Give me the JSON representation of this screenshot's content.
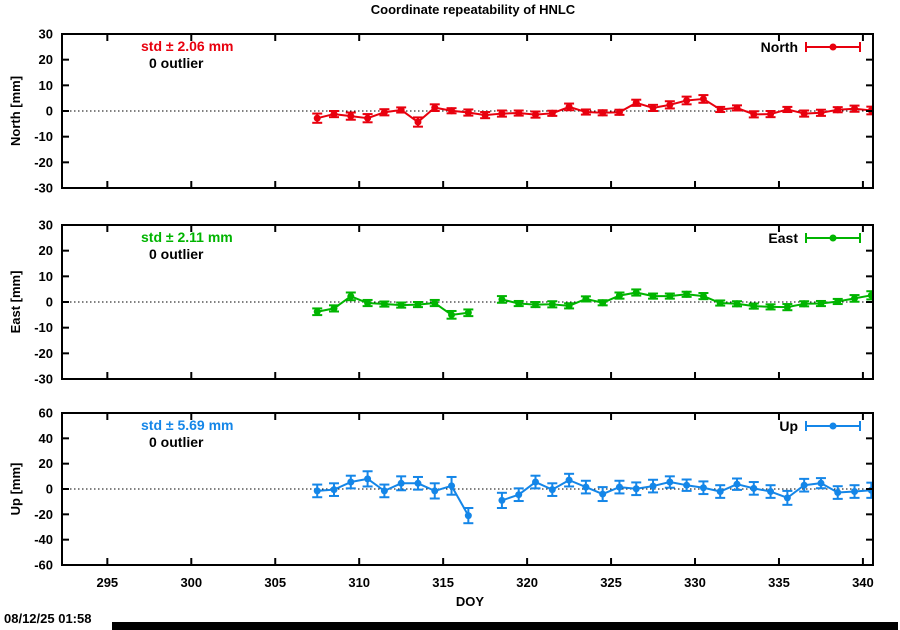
{
  "footer": {
    "timestamp": "08/12/25 01:58"
  },
  "chart_data": {
    "type": "scatter",
    "subtype": "errorbar-timeseries",
    "title": "Coordinate repeatability of HNLC",
    "xlabel": "DOY",
    "xlim": [
      292.3,
      340.6
    ],
    "xticks": [
      295,
      300,
      305,
      310,
      315,
      320,
      325,
      330,
      335,
      340
    ],
    "grid": "zero-line-only",
    "legend_position": "top-right-inside",
    "panels": [
      {
        "name": "North",
        "ylabel": "North [mm]",
        "legend": "North",
        "std_label": "std ± 2.06 mm",
        "outlier_label": "0 outlier",
        "color": "#e8000e",
        "ylim": [
          -30,
          30
        ],
        "yticks": [
          30,
          20,
          10,
          0,
          -10,
          -20,
          -30
        ],
        "points": [
          [
            307.5,
            -2.8,
            1.8
          ],
          [
            308.5,
            -1.2,
            1.2
          ],
          [
            309.5,
            -2.0,
            1.4
          ],
          [
            310.5,
            -2.8,
            1.6
          ],
          [
            311.5,
            -0.5,
            1.2
          ],
          [
            312.5,
            0.4,
            1.0
          ],
          [
            313.5,
            -4.3,
            1.8
          ],
          [
            314.5,
            1.3,
            1.3
          ],
          [
            315.5,
            0.1,
            1.0
          ],
          [
            316.5,
            -0.6,
            1.2
          ],
          [
            317.5,
            -1.6,
            1.2
          ],
          [
            318.5,
            -1.0,
            1.2
          ],
          [
            319.5,
            -0.8,
            1.0
          ],
          [
            320.5,
            -1.4,
            1.2
          ],
          [
            321.5,
            -0.9,
            1.0
          ],
          [
            322.5,
            1.6,
            1.3
          ],
          [
            323.5,
            -0.4,
            1.0
          ],
          [
            324.5,
            -0.7,
            1.0
          ],
          [
            325.5,
            -0.5,
            1.0
          ],
          [
            326.5,
            3.2,
            1.2
          ],
          [
            327.5,
            1.2,
            1.2
          ],
          [
            328.5,
            2.4,
            1.4
          ],
          [
            329.5,
            4.1,
            1.5
          ],
          [
            330.5,
            4.7,
            1.5
          ],
          [
            331.5,
            0.6,
            1.0
          ],
          [
            332.5,
            1.2,
            1.0
          ],
          [
            333.5,
            -1.3,
            1.2
          ],
          [
            334.5,
            -1.2,
            1.2
          ],
          [
            335.5,
            0.6,
            1.0
          ],
          [
            336.5,
            -1.0,
            1.2
          ],
          [
            337.5,
            -0.7,
            1.2
          ],
          [
            338.5,
            0.5,
            1.0
          ],
          [
            339.5,
            0.9,
            1.2
          ],
          [
            340.5,
            0.2,
            1.5
          ]
        ]
      },
      {
        "name": "East",
        "ylabel": "East [mm]",
        "legend": "East",
        "std_label": "std ± 2.11 mm",
        "outlier_label": "0 outlier",
        "color": "#00b400",
        "ylim": [
          -30,
          30
        ],
        "yticks": [
          30,
          20,
          10,
          0,
          -10,
          -20,
          -30
        ],
        "points": [
          [
            307.5,
            -3.8,
            1.3
          ],
          [
            308.5,
            -2.5,
            1.2
          ],
          [
            309.5,
            2.2,
            1.5
          ],
          [
            310.5,
            -0.4,
            1.2
          ],
          [
            311.5,
            -0.8,
            1.0
          ],
          [
            312.5,
            -1.2,
            1.0
          ],
          [
            313.5,
            -1.0,
            1.0
          ],
          [
            314.5,
            -0.4,
            1.2
          ],
          [
            315.5,
            -5.0,
            1.5
          ],
          [
            316.5,
            -4.2,
            1.3
          ],
          [
            318.5,
            1.0,
            1.3
          ],
          [
            319.5,
            -0.6,
            1.0
          ],
          [
            320.5,
            -1.0,
            1.0
          ],
          [
            321.5,
            -0.9,
            1.2
          ],
          [
            322.5,
            -1.5,
            1.0
          ],
          [
            323.5,
            1.2,
            1.0
          ],
          [
            324.5,
            -0.3,
            1.0
          ],
          [
            325.5,
            2.5,
            1.2
          ],
          [
            326.5,
            3.7,
            1.2
          ],
          [
            327.5,
            2.3,
            1.0
          ],
          [
            328.5,
            2.3,
            1.0
          ],
          [
            329.5,
            3.0,
            1.0
          ],
          [
            330.5,
            2.3,
            1.2
          ],
          [
            331.5,
            -0.4,
            1.0
          ],
          [
            332.5,
            -0.7,
            1.0
          ],
          [
            333.5,
            -1.6,
            1.0
          ],
          [
            334.5,
            -1.9,
            1.0
          ],
          [
            335.5,
            -2.0,
            1.2
          ],
          [
            336.5,
            -0.7,
            1.0
          ],
          [
            337.5,
            -0.6,
            1.0
          ],
          [
            338.5,
            0.2,
            1.0
          ],
          [
            339.5,
            1.4,
            1.3
          ],
          [
            340.5,
            2.6,
            1.6
          ]
        ]
      },
      {
        "name": "Up",
        "ylabel": "Up [mm]",
        "legend": "Up",
        "std_label": "std ± 5.69 mm",
        "outlier_label": "0 outlier",
        "color": "#1486e8",
        "ylim": [
          -60,
          60
        ],
        "yticks": [
          60,
          40,
          20,
          0,
          -20,
          -40,
          -60
        ],
        "points": [
          [
            307.5,
            -1.5,
            5.0
          ],
          [
            308.5,
            -0.5,
            5.0
          ],
          [
            309.5,
            5.5,
            5.0
          ],
          [
            310.5,
            8.0,
            6.0
          ],
          [
            311.5,
            -1.5,
            5.0
          ],
          [
            312.5,
            4.5,
            5.5
          ],
          [
            313.5,
            4.5,
            5.0
          ],
          [
            314.5,
            -1.5,
            6.0
          ],
          [
            315.5,
            2.5,
            7.0
          ],
          [
            316.5,
            -21.0,
            6.0
          ],
          [
            318.5,
            -9.0,
            6.0
          ],
          [
            319.5,
            -4.5,
            5.0
          ],
          [
            320.5,
            5.5,
            5.0
          ],
          [
            321.5,
            -0.5,
            5.0
          ],
          [
            322.5,
            7.0,
            5.0
          ],
          [
            323.5,
            1.5,
            5.0
          ],
          [
            324.5,
            -4.0,
            5.5
          ],
          [
            325.5,
            1.5,
            5.0
          ],
          [
            326.5,
            0.2,
            5.0
          ],
          [
            327.5,
            2.3,
            5.0
          ],
          [
            328.5,
            5.5,
            4.5
          ],
          [
            329.5,
            3.0,
            4.5
          ],
          [
            330.5,
            1.0,
            5.0
          ],
          [
            331.5,
            -2.0,
            5.0
          ],
          [
            332.5,
            3.8,
            4.5
          ],
          [
            333.5,
            0.5,
            5.0
          ],
          [
            334.5,
            -2.0,
            5.0
          ],
          [
            335.5,
            -7.0,
            5.5
          ],
          [
            336.5,
            3.0,
            5.0
          ],
          [
            337.5,
            4.6,
            4.0
          ],
          [
            338.5,
            -2.8,
            5.0
          ],
          [
            339.5,
            -2.0,
            5.0
          ],
          [
            340.5,
            -1.0,
            6.0
          ]
        ]
      }
    ]
  }
}
